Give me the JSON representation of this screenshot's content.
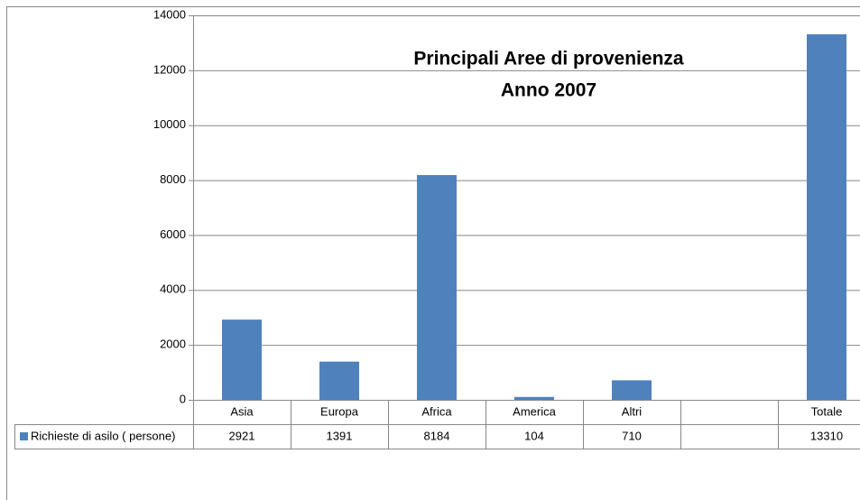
{
  "chart_data": {
    "type": "bar",
    "title": "Principali Aree di provenienza",
    "subtitle": "Anno 2007",
    "categories": [
      "Asia",
      "Europa",
      "Africa",
      "America",
      "Altri",
      null,
      "Totale"
    ],
    "series": [
      {
        "name": "Richieste di asilo ( persone)",
        "color": "#4f81bd",
        "values": [
          2921,
          1391,
          8184,
          104,
          710,
          null,
          13310
        ]
      }
    ],
    "ylim": [
      0,
      14000
    ],
    "yticks": [
      0,
      2000,
      4000,
      6000,
      8000,
      10000,
      12000,
      14000
    ],
    "grid": true,
    "data_table": true
  }
}
